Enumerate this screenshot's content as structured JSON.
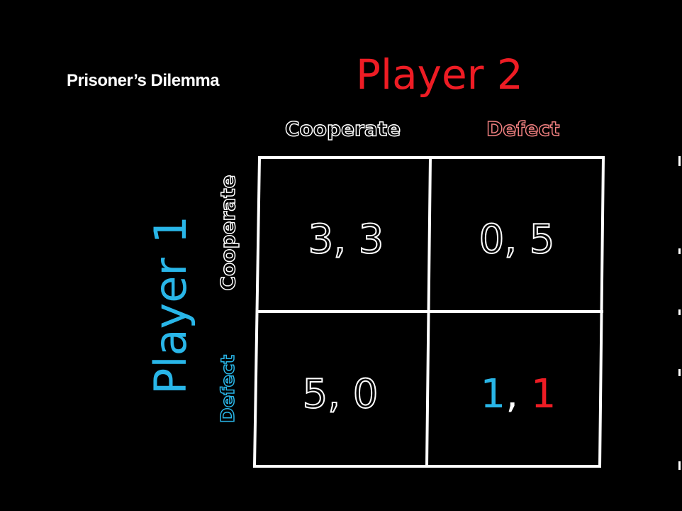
{
  "title": "Prisoner’s Dilemma",
  "player2": {
    "label": "Player 2",
    "color": "#ee1c24"
  },
  "player1": {
    "label": "Player 1",
    "color": "#29b6e8"
  },
  "columns": [
    "Cooperate",
    "Defect"
  ],
  "rows": [
    "Cooperate",
    "Defect"
  ],
  "payoffs": [
    [
      "3, 3",
      "0, 5"
    ],
    [
      "5, 0",
      "1, 1"
    ]
  ],
  "highlight_cell": {
    "p1": "1",
    "separator": ",",
    "p2": "1"
  }
}
